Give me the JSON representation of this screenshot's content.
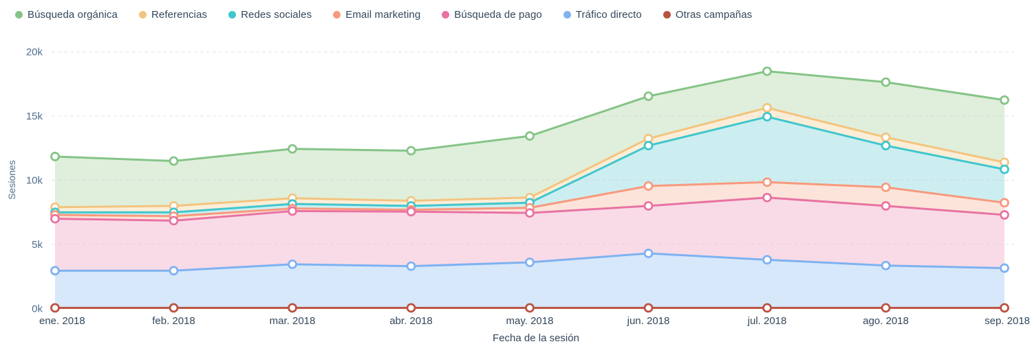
{
  "legend": {
    "note": "legend labels come from chart_data.series names"
  },
  "chart_data": {
    "type": "area",
    "title": "",
    "xlabel": "Fecha de la sesión",
    "ylabel": "Sesiones",
    "categories": [
      "ene. 2018",
      "feb. 2018",
      "mar. 2018",
      "abr. 2018",
      "may. 2018",
      "jun. 2018",
      "jul. 2018",
      "ago. 2018",
      "sep. 2018"
    ],
    "ylim": [
      0,
      20000
    ],
    "yticks": [
      0,
      5000,
      10000,
      15000,
      20000
    ],
    "ytick_labels": [
      "0k",
      "5k",
      "10k",
      "15k",
      "20k"
    ],
    "grid": "dashed horizontal",
    "legend_position": "top-left",
    "series": [
      {
        "name": "Búsqueda orgánica",
        "color": "#85c487",
        "fill_color": "#dfefdb",
        "values": [
          11850,
          11500,
          12450,
          12300,
          13450,
          16550,
          18500,
          17650,
          16250
        ]
      },
      {
        "name": "Referencias",
        "color": "#f3c47f",
        "fill_color": "#fbeed8",
        "values": [
          7900,
          8000,
          8600,
          8400,
          8650,
          13250,
          15650,
          13350,
          11400
        ]
      },
      {
        "name": "Redes sociales",
        "color": "#40c6cd",
        "fill_color": "#cdeef0",
        "values": [
          7500,
          7500,
          8150,
          8000,
          8250,
          12700,
          14950,
          12700,
          10850
        ]
      },
      {
        "name": "Email marketing",
        "color": "#f8997d",
        "fill_color": "#fce4da",
        "values": [
          7300,
          7200,
          7800,
          7700,
          7850,
          9550,
          9850,
          9450,
          8250
        ]
      },
      {
        "name": "Búsqueda de pago",
        "color": "#e873a2",
        "fill_color": "#f9dbe7",
        "values": [
          7000,
          6850,
          7600,
          7550,
          7450,
          8000,
          8650,
          8000,
          7300
        ]
      },
      {
        "name": "Tráfico directo",
        "color": "#7eb2f1",
        "fill_color": "#d8e8fb",
        "values": [
          2950,
          2950,
          3450,
          3300,
          3600,
          4300,
          3800,
          3350,
          3150
        ]
      },
      {
        "name": "Otras campañas",
        "color": "#b95341",
        "fill_color": null,
        "values": [
          50,
          50,
          50,
          50,
          50,
          50,
          50,
          50,
          50
        ]
      }
    ],
    "axis_colors": {
      "ytick": "#516f90",
      "xtick": "#33475b",
      "axis_title": "#33475b",
      "gridline": "#c9d2dd"
    }
  }
}
